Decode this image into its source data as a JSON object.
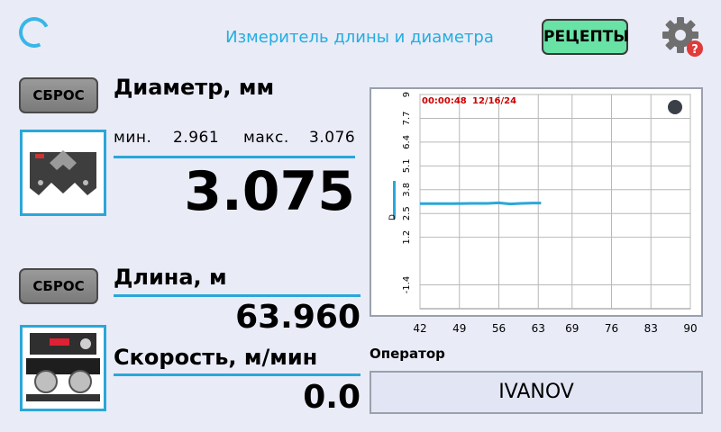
{
  "header": {
    "title": "Измеритель длины и диаметра",
    "recipes_label": "РЕЦЕПТЫ",
    "settings_badge": "?"
  },
  "diameter": {
    "reset_label": "СБРОС",
    "title": "Диаметр, мм",
    "min_label": "мин.",
    "min_value": "2.961",
    "max_label": "макс.",
    "max_value": "3.076",
    "value": "3.075"
  },
  "length": {
    "reset_label": "СБРОС",
    "title": "Длина, м",
    "value": "63.960"
  },
  "speed": {
    "title": "Скорость, м/мин",
    "value": "0.0"
  },
  "chart_overlay": {
    "time": "00:00:48",
    "date": "12/16/24",
    "y_axis_label": "D"
  },
  "operator": {
    "label": "Оператор",
    "value": "IVANOV"
  },
  "colors": {
    "accent": "#2aa7d9",
    "recipes_button": "#68e2a5",
    "chart_time": "#cc0000",
    "badge": "#e03a3a"
  },
  "chart_data": {
    "type": "line",
    "x_ticks": [
      "42",
      "49",
      "56",
      "63",
      "69",
      "76",
      "83",
      "90"
    ],
    "y_ticks": [
      "-1.4",
      "1.2",
      "2.5",
      "3.8",
      "5.1",
      "6.4",
      "7.7",
      "9"
    ],
    "xlim": [
      42,
      90
    ],
    "ylim": [
      -2.7,
      9
    ],
    "ylabel": "D",
    "grid": true,
    "series": [
      {
        "x": [
          42,
          45,
          48,
          51,
          54,
          56,
          58,
          60,
          62,
          63.5
        ],
        "y": [
          3.04,
          3.04,
          3.04,
          3.05,
          3.05,
          3.08,
          3.02,
          3.05,
          3.07,
          3.07
        ]
      }
    ]
  }
}
